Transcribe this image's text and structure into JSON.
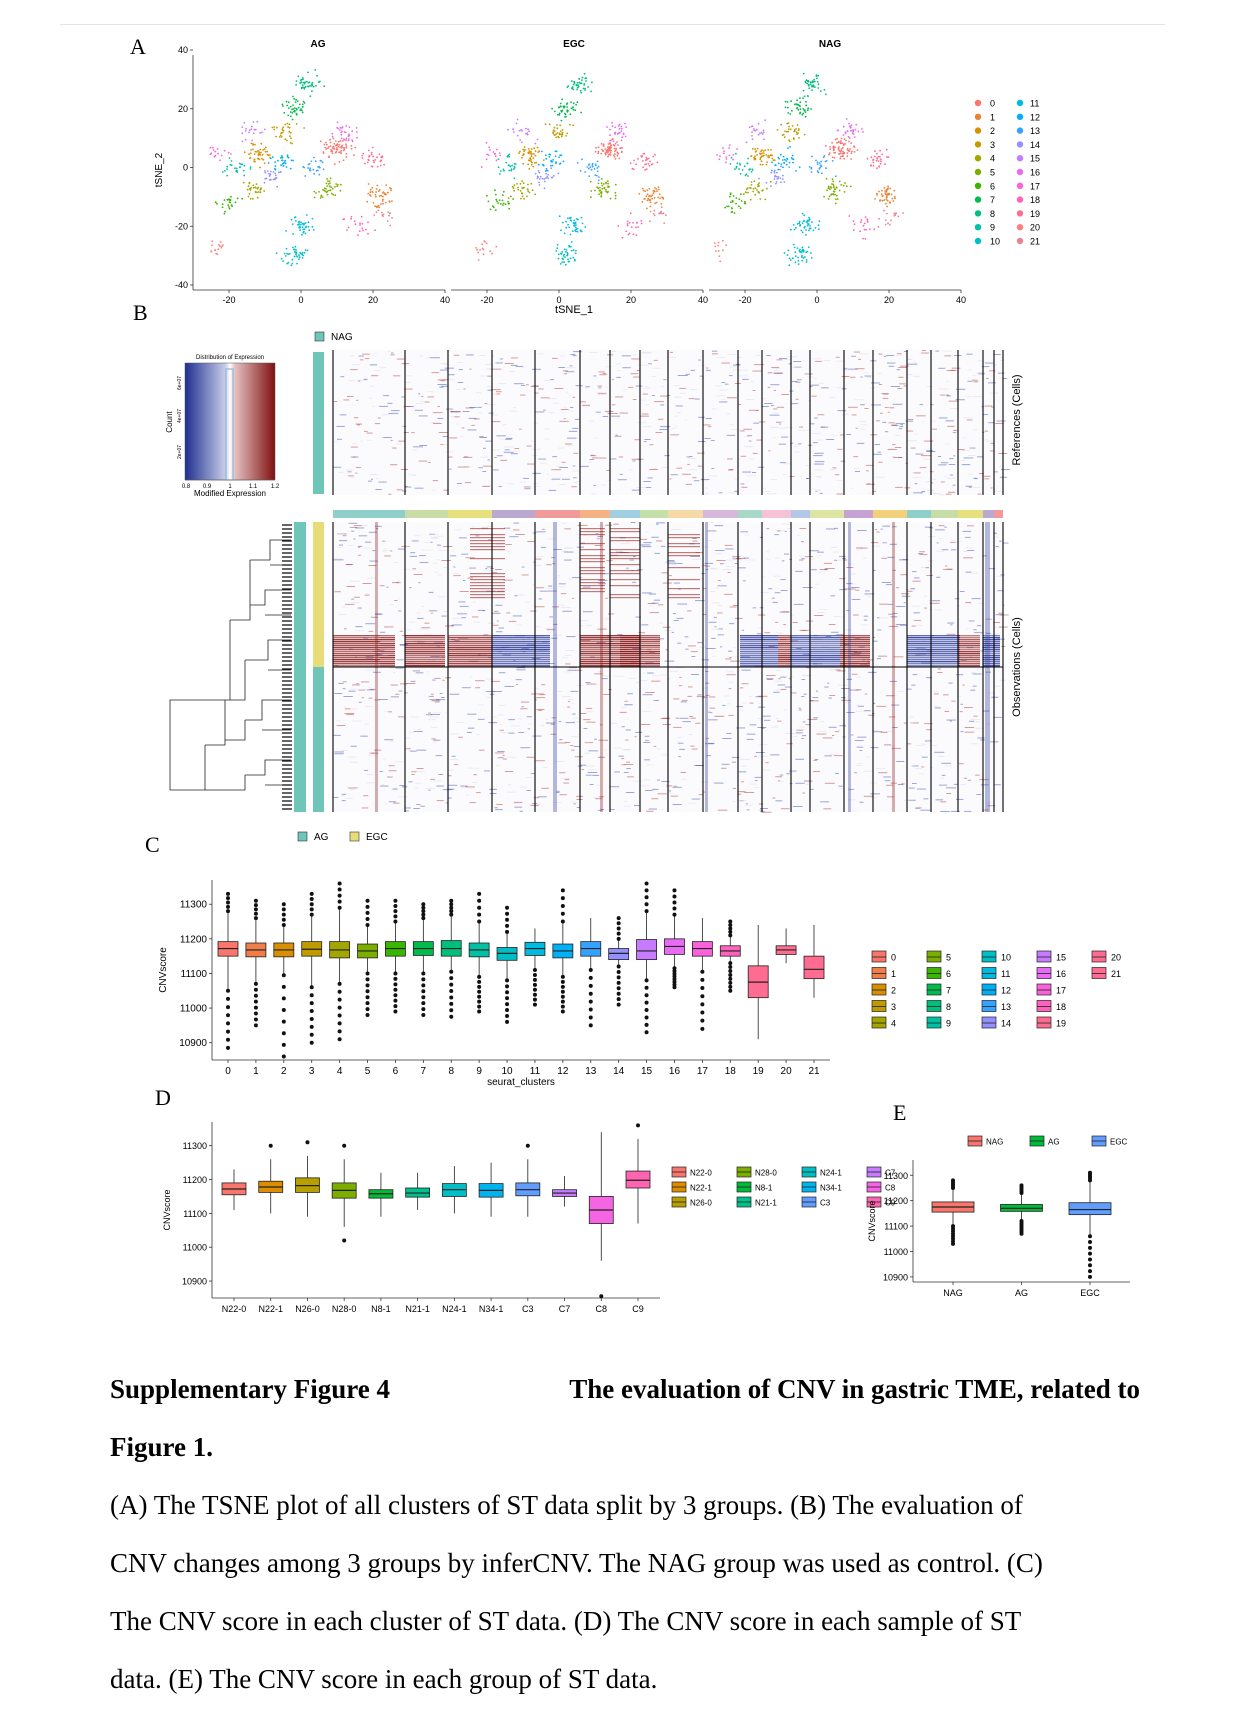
{
  "panel_labels": {
    "A": "A",
    "B": "B",
    "C": "C",
    "D": "D",
    "E": "E"
  },
  "panelA": {
    "titles": [
      "AG",
      "EGC",
      "NAG"
    ],
    "xlabel": "tSNE_1",
    "ylabel": "tSNE_2",
    "xticks": [
      "-20",
      "0",
      "20",
      "40"
    ],
    "yticks": [
      "40",
      "20",
      "0",
      "-20",
      "-40"
    ],
    "legend_left": [
      "0",
      "1",
      "2",
      "3",
      "4",
      "5",
      "6",
      "7",
      "8",
      "9",
      "10"
    ],
    "legend_right": [
      "11",
      "12",
      "13",
      "14",
      "15",
      "16",
      "17",
      "18",
      "19",
      "20",
      "21"
    ]
  },
  "panelB": {
    "group_label": "NAG",
    "hist_title": "Distribution of Expression",
    "hist_ylabel": "Count",
    "hist_yticks": [
      "2e+07",
      "4e+07",
      "6e+07"
    ],
    "hist_xticks": [
      "0.8",
      "0.9",
      "1",
      "1.1",
      "1.2"
    ],
    "hist_xlabel": "Modified Expression",
    "ref_label": "References (Cells)",
    "obs_label": "Observations (Cells)",
    "legend": [
      "AG",
      "EGC"
    ]
  },
  "chart_data": [
    {
      "type": "box",
      "title": "",
      "xlabel": "seurat_clusters",
      "ylabel": "CNVscore",
      "ylim": [
        10850,
        11370
      ],
      "yticks": [
        "10900",
        "11000",
        "11100",
        "11200",
        "11300"
      ],
      "categories": [
        "0",
        "1",
        "2",
        "3",
        "4",
        "5",
        "6",
        "7",
        "8",
        "9",
        "10",
        "11",
        "12",
        "13",
        "14",
        "15",
        "16",
        "17",
        "18",
        "19",
        "20",
        "21"
      ],
      "medians": [
        11172,
        11168,
        11168,
        11170,
        11168,
        11165,
        11172,
        11172,
        11172,
        11168,
        11158,
        11172,
        11165,
        11172,
        11158,
        11165,
        11178,
        11172,
        11165,
        11075,
        11168,
        11112
      ],
      "q1": [
        11150,
        11148,
        11148,
        11150,
        11145,
        11145,
        11150,
        11152,
        11150,
        11148,
        11138,
        11152,
        11145,
        11150,
        11140,
        11140,
        11155,
        11150,
        11150,
        11030,
        11155,
        11085
      ],
      "q3": [
        11192,
        11188,
        11188,
        11192,
        11192,
        11185,
        11192,
        11192,
        11195,
        11188,
        11175,
        11190,
        11185,
        11192,
        11172,
        11198,
        11200,
        11192,
        11180,
        11122,
        11180,
        11150
      ],
      "whisker_low": [
        11050,
        11070,
        11095,
        11060,
        11070,
        11100,
        11100,
        11100,
        11105,
        11090,
        11080,
        11110,
        11090,
        11110,
        11120,
        11080,
        11115,
        11105,
        11130,
        10910,
        11130,
        11030
      ],
      "whisker_high": [
        11280,
        11260,
        11240,
        11270,
        11290,
        11240,
        11250,
        11260,
        11270,
        11250,
        11220,
        11230,
        11250,
        11260,
        11200,
        11280,
        11270,
        11260,
        11210,
        11240,
        11230,
        11240
      ],
      "outliers_low": [
        10885,
        10950,
        10860,
        10900,
        10910,
        10980,
        10990,
        10980,
        10975,
        10990,
        10960,
        11010,
        10990,
        10950,
        11010,
        10930,
        11060,
        10940,
        11050,
        null,
        null,
        null
      ],
      "outliers_high": [
        11330,
        11310,
        11300,
        11330,
        11360,
        11310,
        11310,
        11300,
        11310,
        11330,
        11290,
        null,
        11340,
        null,
        11260,
        11360,
        11340,
        null,
        11250,
        null,
        null,
        null
      ],
      "colors": [
        "#F8766D",
        "#F07E4A",
        "#D89000",
        "#C09B00",
        "#A3A500",
        "#7CAE00",
        "#39B600",
        "#00BB4E",
        "#00BF7D",
        "#00C1A3",
        "#00BFC4",
        "#00BAE0",
        "#00B0F6",
        "#35A2FF",
        "#9590FF",
        "#C77CFF",
        "#E76BF3",
        "#FA62DB",
        "#FF62BC",
        "#FF6C91",
        "#FF6C91",
        "#FF6C91"
      ],
      "legend": [
        [
          "0",
          "5",
          "10",
          "15",
          "20"
        ],
        [
          "1",
          "6",
          "11",
          "16",
          "21"
        ],
        [
          "2",
          "7",
          "12",
          "17"
        ],
        [
          "3",
          "8",
          "13",
          "18"
        ],
        [
          "4",
          "9",
          "14",
          "19"
        ]
      ]
    },
    {
      "type": "box",
      "title": "",
      "xlabel": "",
      "ylabel": "CNVscore",
      "ylim": [
        10850,
        11370
      ],
      "yticks": [
        "10900",
        "11000",
        "11100",
        "11200",
        "11300"
      ],
      "categories": [
        "N22-0",
        "N22-1",
        "N26-0",
        "N28-0",
        "N8-1",
        "N21-1",
        "N24-1",
        "N34-1",
        "C3",
        "C7",
        "C8",
        "C9"
      ],
      "medians": [
        11172,
        11178,
        11182,
        11168,
        11158,
        11160,
        11170,
        11168,
        11170,
        11160,
        11110,
        11198
      ],
      "q1": [
        11155,
        11162,
        11162,
        11145,
        11145,
        11148,
        11150,
        11148,
        11152,
        11150,
        11070,
        11175
      ],
      "q3": [
        11190,
        11195,
        11205,
        11190,
        11170,
        11175,
        11188,
        11188,
        11190,
        11170,
        11150,
        11225
      ],
      "whisker_low": [
        11110,
        11100,
        11090,
        11060,
        11090,
        11110,
        11100,
        11090,
        11090,
        11120,
        10960,
        11070
      ],
      "whisker_high": [
        11230,
        11260,
        11270,
        11260,
        11220,
        11220,
        11240,
        11250,
        11260,
        11210,
        11340,
        11320
      ],
      "outliers_low": [
        null,
        null,
        null,
        11020,
        null,
        null,
        null,
        null,
        null,
        null,
        10855,
        null
      ],
      "outliers_high": [
        null,
        11300,
        11310,
        11300,
        null,
        null,
        null,
        null,
        11300,
        null,
        null,
        11360
      ],
      "colors": [
        "#F8766D",
        "#DE8C00",
        "#B79F00",
        "#7CAE00",
        "#00BA38",
        "#00C08B",
        "#00BFC4",
        "#00B4F0",
        "#619CFF",
        "#C77CFF",
        "#F564E3",
        "#FF64B0"
      ],
      "legend": [
        [
          "N22-0",
          "N28-0",
          "N24-1",
          "C7"
        ],
        [
          "N22-1",
          "N8-1",
          "N34-1",
          "C8"
        ],
        [
          "N26-0",
          "N21-1",
          "C3",
          "C9"
        ]
      ]
    },
    {
      "type": "box",
      "title": "",
      "xlabel": "",
      "ylabel": "CNVscore",
      "ylim": [
        10880,
        11360
      ],
      "yticks": [
        "10900",
        "11000",
        "11100",
        "11200",
        "11300"
      ],
      "categories": [
        "NAG",
        "AG",
        "EGC"
      ],
      "medians": [
        11175,
        11170,
        11165
      ],
      "q1": [
        11155,
        11158,
        11145
      ],
      "q3": [
        11195,
        11185,
        11192
      ],
      "whisker_low": [
        11100,
        11120,
        11060
      ],
      "whisker_high": [
        11250,
        11230,
        11280
      ],
      "outliers_low": [
        11030,
        11070,
        10900
      ],
      "outliers_high": [
        11280,
        11260,
        11310
      ],
      "colors": [
        "#F8766D",
        "#00BA38",
        "#619CFF"
      ],
      "legend": [
        "NAG",
        "AG",
        "EGC"
      ]
    }
  ],
  "caption": {
    "title_left": "Supplementary Figure 4",
    "title_right": "The evaluation of CNV in gastric TME, related to",
    "title_line2": "Figure 1.",
    "lines": [
      "(A) The TSNE plot of all clusters of ST data split by 3 groups. (B) The evaluation of",
      "CNV changes among 3 groups by inferCNV. The NAG group was used as control. (C)",
      "The CNV score in each cluster of ST data. (D) The CNV score in each sample of ST",
      "data. (E) The CNV score in each group of ST data."
    ]
  }
}
